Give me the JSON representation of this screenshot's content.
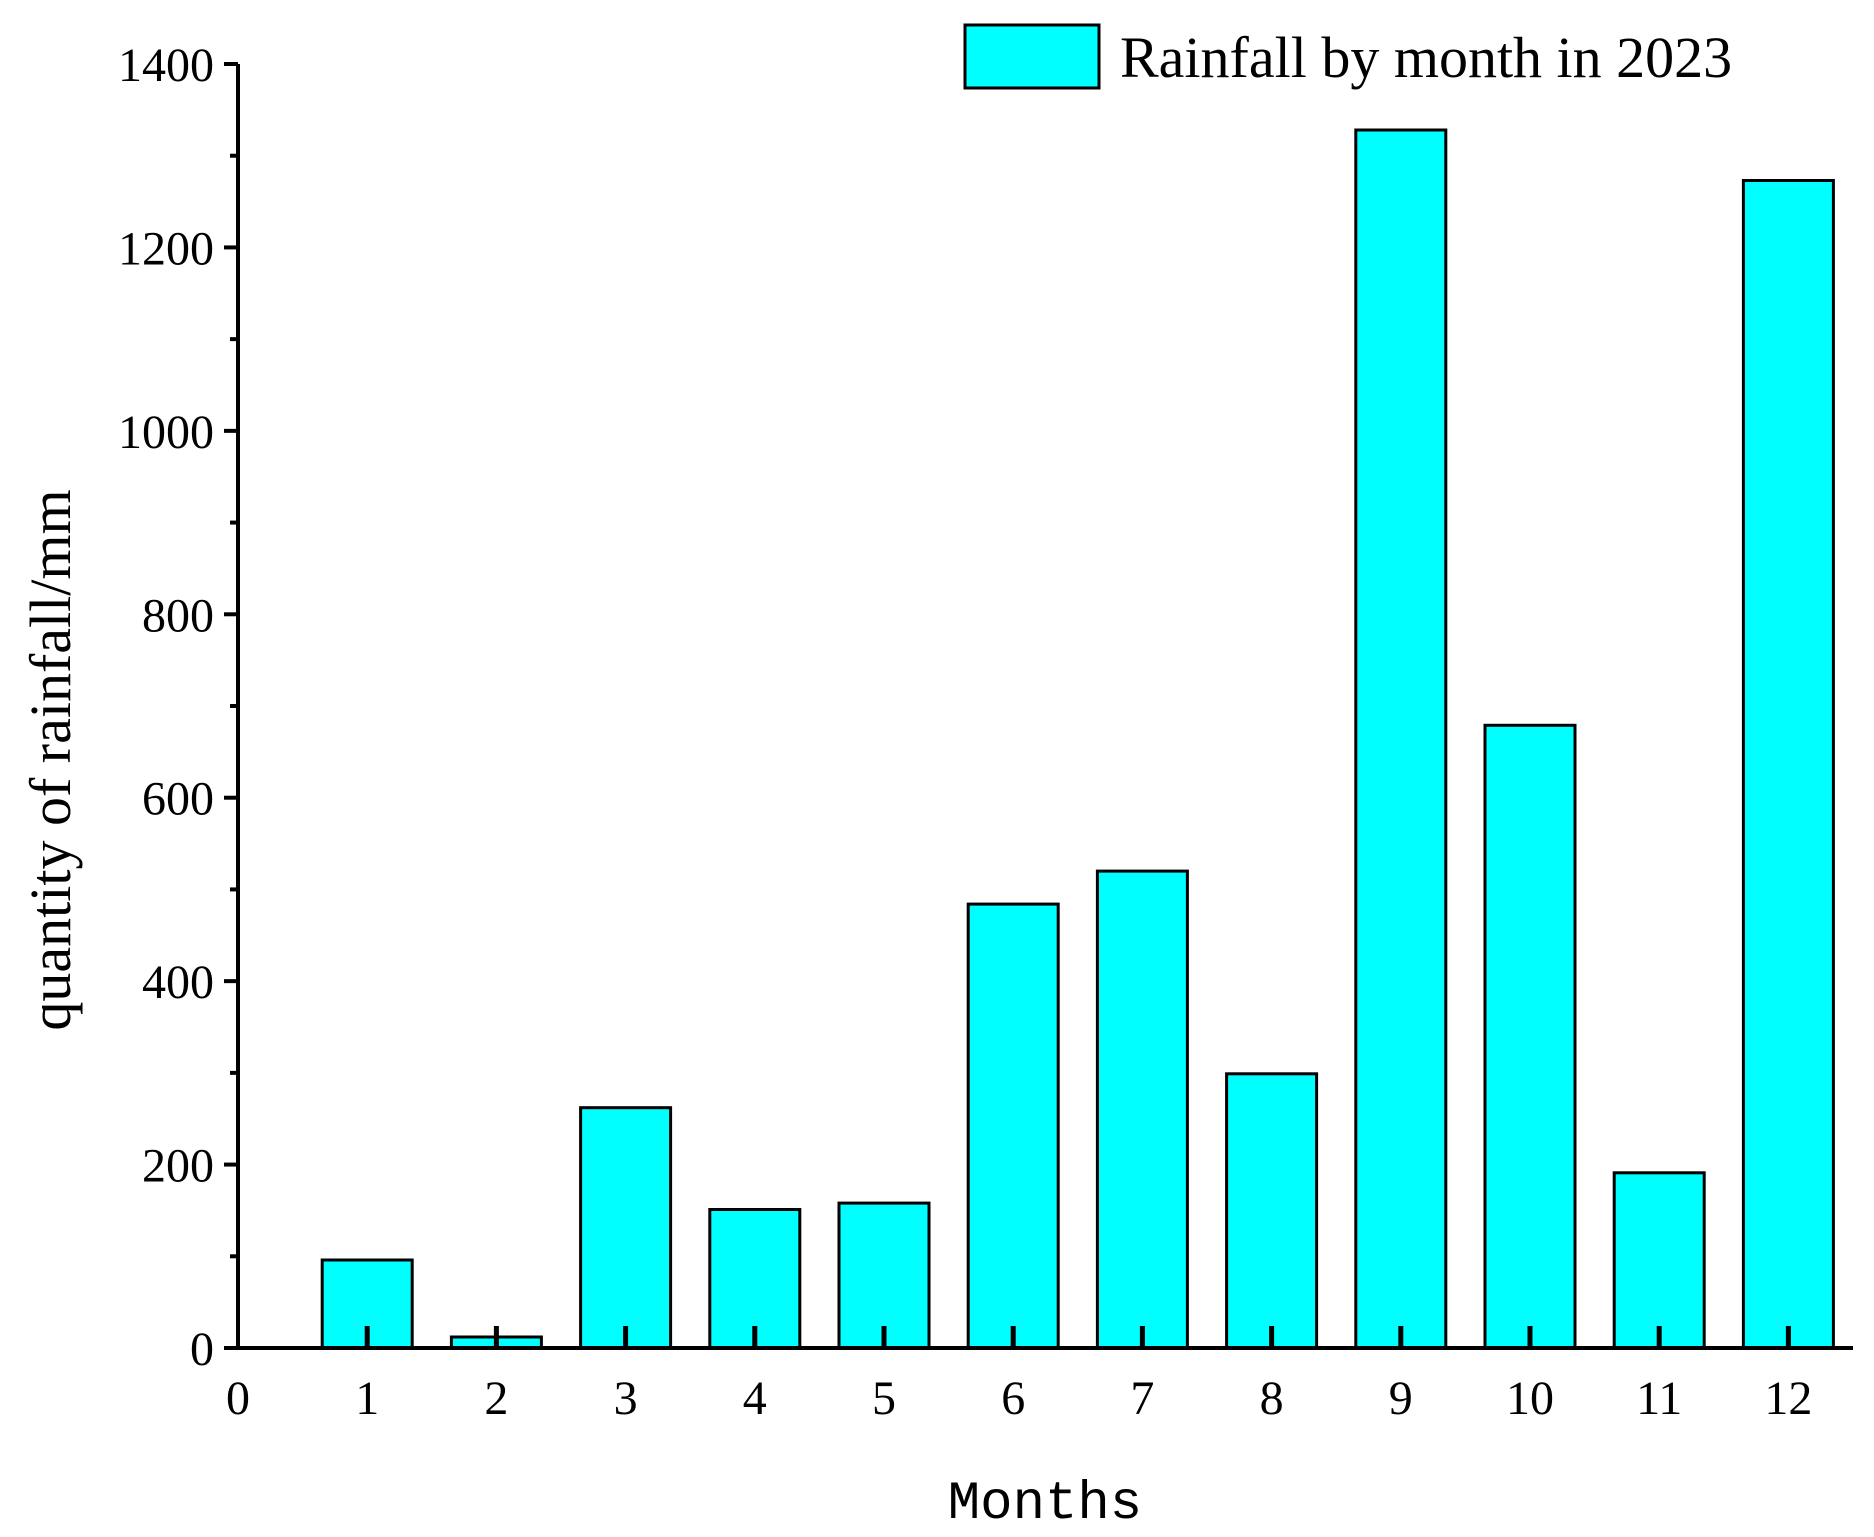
{
  "chart_data": {
    "type": "bar",
    "title": "",
    "xlabel": "Months",
    "ylabel": "quantity of rainfall/mm",
    "x_ticks": [
      "0",
      "1",
      "2",
      "3",
      "4",
      "5",
      "6",
      "7",
      "8",
      "9",
      "10",
      "11",
      "12"
    ],
    "y_ticks": [
      "0",
      "200",
      "400",
      "600",
      "800",
      "1000",
      "1200",
      "1400"
    ],
    "xlim": [
      0,
      12.5
    ],
    "ylim": [
      0,
      1400
    ],
    "legend_position": "top-right",
    "grid": false,
    "series": [
      {
        "name": "Rainfall by month in 2023",
        "color": "#00FFFF",
        "categories": [
          1,
          2,
          3,
          4,
          5,
          6,
          7,
          8,
          9,
          10,
          11,
          12
        ],
        "values": [
          96,
          12,
          262,
          151,
          158,
          484,
          520,
          299,
          1328,
          679,
          191,
          1273
        ]
      }
    ]
  }
}
